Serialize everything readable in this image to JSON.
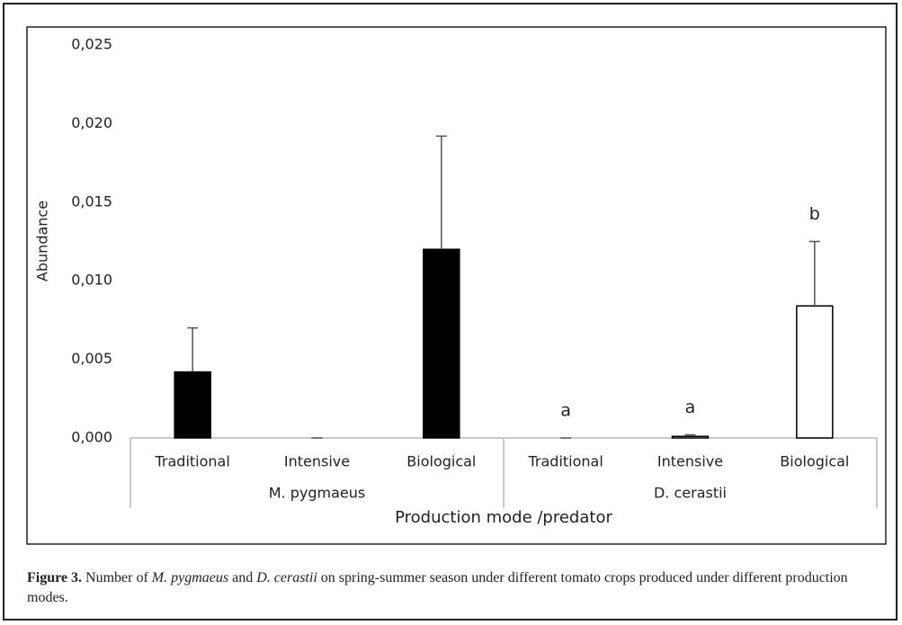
{
  "chart_data": {
    "type": "bar",
    "y_label": "Abundance",
    "x_label": "Production mode /predator",
    "categories": [
      "Traditional",
      "Intensive",
      "Biological"
    ],
    "series": [
      {
        "name": "M. pygmaeus",
        "color": "#000000",
        "values": [
          0.0042,
          0,
          0.012
        ],
        "errors": [
          0.0028,
          0,
          0.0072
        ]
      },
      {
        "name": "D. cerastii",
        "color": "#ffffff",
        "values": [
          0,
          0.0001,
          0.0084
        ],
        "errors": [
          0,
          0.0001,
          0.0041
        ],
        "annotations": [
          "a",
          "a",
          "b"
        ]
      }
    ],
    "ylim": [
      0,
      0.025
    ],
    "yticks": [
      {
        "value": 0,
        "label": "0,000"
      },
      {
        "value": 0.005,
        "label": "0,005"
      },
      {
        "value": 0.01,
        "label": "0,010"
      },
      {
        "value": 0.015,
        "label": "0,015"
      },
      {
        "value": 0.02,
        "label": "0,020"
      },
      {
        "value": 0.025,
        "label": "0,025"
      }
    ]
  },
  "caption": {
    "label": "Figure 3.",
    "parts": [
      " Number of ",
      "M. pygmaeus",
      " and ",
      "D. cerastii",
      " on spring-summer season under different tomato crops produced under different production modes."
    ]
  }
}
